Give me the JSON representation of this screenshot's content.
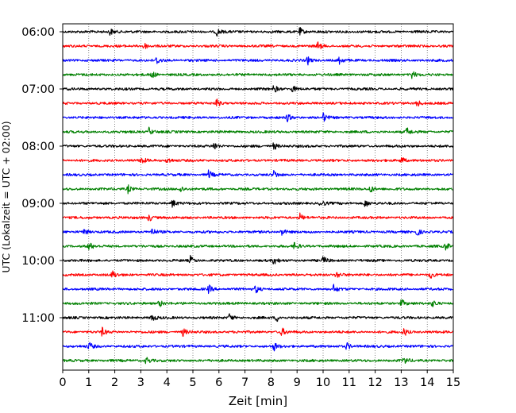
{
  "chart_data": {
    "type": "line",
    "subtype": "helicorder",
    "xlabel": "Zeit  [min]",
    "ylabel": "UTC (Lokalzeit = UTC + 02:00)",
    "xlim": [
      0,
      15
    ],
    "x_ticks": [
      0,
      1,
      2,
      3,
      4,
      5,
      6,
      7,
      8,
      9,
      10,
      11,
      12,
      13,
      14,
      15
    ],
    "x_tick_labels": [
      "0",
      "1",
      "2",
      "3",
      "4",
      "5",
      "6",
      "7",
      "8",
      "9",
      "10",
      "11",
      "12",
      "13",
      "14",
      "15"
    ],
    "y_tick_labels": [
      "06:00",
      "07:00",
      "08:00",
      "09:00",
      "10:00",
      "11:00"
    ],
    "y_tick_trace_index": [
      0,
      4,
      8,
      12,
      16,
      20
    ],
    "minutes_per_trace": 15,
    "trace_count": 24,
    "grid": "vertical-dotted",
    "trace_colors": [
      "#000000",
      "#ff0000",
      "#0000ff",
      "#008000"
    ],
    "series": [
      {
        "start": "06:00",
        "color": "#000000",
        "events": [
          1.8,
          5.9,
          9.1
        ]
      },
      {
        "start": "06:15",
        "color": "#ff0000",
        "events": [
          3.1,
          9.8
        ]
      },
      {
        "start": "06:30",
        "color": "#0000ff",
        "events": [
          3.6,
          9.4,
          10.6
        ]
      },
      {
        "start": "06:45",
        "color": "#008000",
        "events": [
          3.4,
          13.4
        ]
      },
      {
        "start": "07:00",
        "color": "#000000",
        "events": [
          8.1,
          8.8
        ]
      },
      {
        "start": "07:15",
        "color": "#ff0000",
        "events": [
          5.9,
          13.6
        ]
      },
      {
        "start": "07:30",
        "color": "#0000ff",
        "events": [
          8.6,
          10.0
        ]
      },
      {
        "start": "07:45",
        "color": "#008000",
        "events": [
          3.3,
          13.2
        ]
      },
      {
        "start": "08:00",
        "color": "#000000",
        "events": [
          5.8,
          8.1
        ]
      },
      {
        "start": "08:15",
        "color": "#ff0000",
        "events": [
          3.0,
          4.0,
          13.0
        ]
      },
      {
        "start": "08:30",
        "color": "#0000ff",
        "events": [
          5.6,
          8.1
        ]
      },
      {
        "start": "08:45",
        "color": "#008000",
        "events": [
          2.5,
          4.5,
          11.8
        ]
      },
      {
        "start": "09:00",
        "color": "#000000",
        "events": [
          4.2,
          9.9,
          11.6
        ]
      },
      {
        "start": "09:15",
        "color": "#ff0000",
        "events": [
          3.3,
          9.1
        ]
      },
      {
        "start": "09:30",
        "color": "#0000ff",
        "events": [
          0.8,
          3.4,
          8.4,
          13.6
        ]
      },
      {
        "start": "09:45",
        "color": "#008000",
        "events": [
          1.0,
          8.9,
          14.7
        ]
      },
      {
        "start": "10:00",
        "color": "#000000",
        "events": [
          4.9,
          8.1,
          10.0
        ]
      },
      {
        "start": "10:15",
        "color": "#ff0000",
        "events": [
          1.9,
          10.5,
          14.1
        ]
      },
      {
        "start": "10:30",
        "color": "#0000ff",
        "events": [
          5.6,
          7.4,
          10.4
        ]
      },
      {
        "start": "10:45",
        "color": "#008000",
        "events": [
          3.7,
          13.0,
          14.2
        ]
      },
      {
        "start": "11:00",
        "color": "#000000",
        "events": [
          3.4,
          6.4,
          8.2
        ]
      },
      {
        "start": "11:15",
        "color": "#ff0000",
        "events": [
          1.5,
          4.6,
          8.4,
          13.1
        ]
      },
      {
        "start": "11:30",
        "color": "#0000ff",
        "events": [
          1.0,
          8.1,
          10.9
        ]
      },
      {
        "start": "11:45",
        "color": "#008000",
        "events": [
          3.2,
          13.1
        ]
      }
    ]
  }
}
